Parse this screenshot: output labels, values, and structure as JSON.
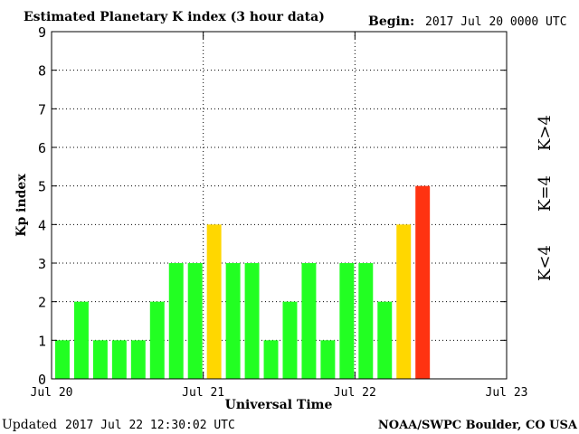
{
  "header": {
    "title": "Estimated Planetary K index (3 hour data)",
    "begin_label": "Begin:",
    "begin_value": "2017 Jul 20 0000 UTC"
  },
  "footer": {
    "updated_label": "Updated",
    "updated_value": "2017 Jul 22 12:30:02 UTC",
    "source": "NOAA/SWPC Boulder, CO USA"
  },
  "legend": {
    "low": "K<4",
    "mid": "K=4",
    "high": "K>4"
  },
  "colors": {
    "low": "#22ff22",
    "mid": "#ffd700",
    "high": "#ff3311"
  },
  "chart_data": {
    "type": "bar",
    "title": "Estimated Planetary K index (3 hour data)",
    "xlabel": "Universal Time",
    "ylabel": "Kp index",
    "ylim": [
      0,
      9
    ],
    "yticks": [
      "0",
      "1",
      "2",
      "3",
      "4",
      "5",
      "6",
      "7",
      "8",
      "9"
    ],
    "xticks": [
      "Jul 20",
      "Jul 21",
      "Jul 22",
      "Jul 23"
    ],
    "grid": true,
    "interval_hours": 3,
    "values": [
      1,
      2,
      1,
      1,
      1,
      2,
      3,
      3,
      4,
      3,
      3,
      1,
      2,
      3,
      1,
      3,
      3,
      2,
      4,
      5
    ]
  }
}
